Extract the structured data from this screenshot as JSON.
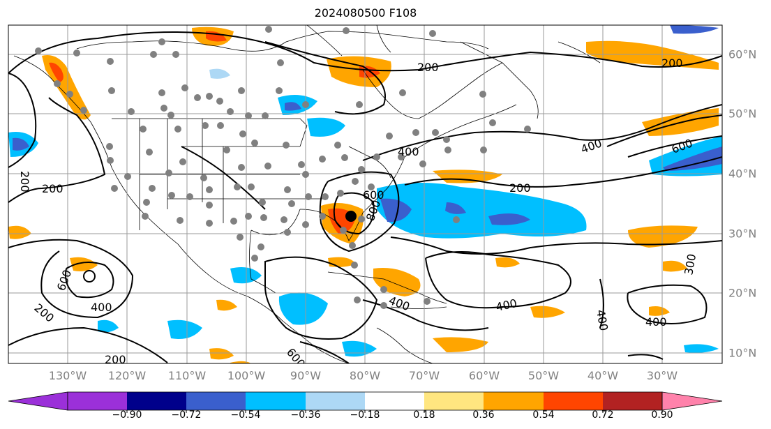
{
  "title": "2024080500 F108",
  "map": {
    "lon_labels": [
      "130°W",
      "120°W",
      "110°W",
      "100°W",
      "90°W",
      "80°W",
      "70°W",
      "60°W",
      "50°W",
      "40°W",
      "30°W"
    ],
    "lat_labels": [
      "60°N",
      "50°N",
      "40°N",
      "30°N",
      "20°N",
      "10°N"
    ],
    "contour_levels": [
      "200",
      "200",
      "200",
      "200",
      "200",
      "200",
      "200",
      "400",
      "400",
      "400",
      "400",
      "400",
      "400",
      "400",
      "600",
      "600",
      "600",
      "600",
      "800",
      "300"
    ]
  },
  "colorbar": {
    "ticks": [
      "−0.90",
      "−0.72",
      "−0.54",
      "−0.36",
      "−0.18",
      "0.18",
      "0.36",
      "0.54",
      "0.72",
      "0.90"
    ],
    "colors": [
      "#9b30d9",
      "#00008b",
      "#3a5fcd",
      "#00bfff",
      "#add8f5",
      "#ffffff",
      "#ffe680",
      "#ffa500",
      "#ff4500",
      "#b22222",
      "#ff82ab"
    ]
  }
}
